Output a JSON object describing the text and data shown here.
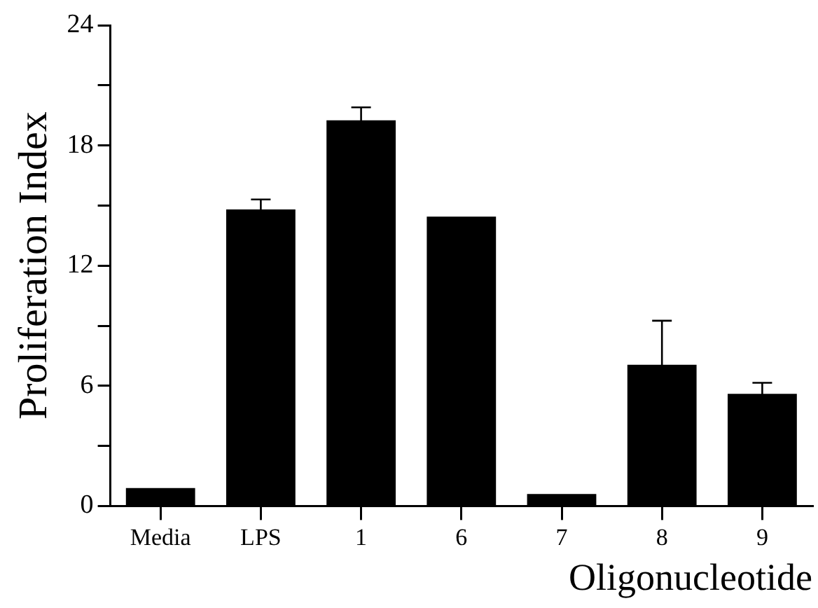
{
  "chart_data": {
    "type": "bar",
    "xlabel": "Oligonucleotide",
    "ylabel": "Proliferation Index",
    "categories": [
      "Media",
      "LPS",
      "1",
      "6",
      "7",
      "8",
      "9"
    ],
    "values": [
      0.9,
      14.8,
      19.25,
      14.45,
      0.6,
      7.05,
      5.6
    ],
    "errors": [
      null,
      0.5,
      0.65,
      null,
      null,
      2.2,
      0.55
    ],
    "color": "#000000",
    "ylim": [
      0,
      24
    ],
    "yticks": [
      0,
      {
        "value": 3,
        "label": null
      },
      6,
      {
        "value": 9,
        "label": null
      },
      12,
      {
        "value": 15,
        "label": null
      },
      18,
      {
        "value": 21,
        "label": null
      },
      24
    ],
    "grid": false,
    "legend": false
  }
}
